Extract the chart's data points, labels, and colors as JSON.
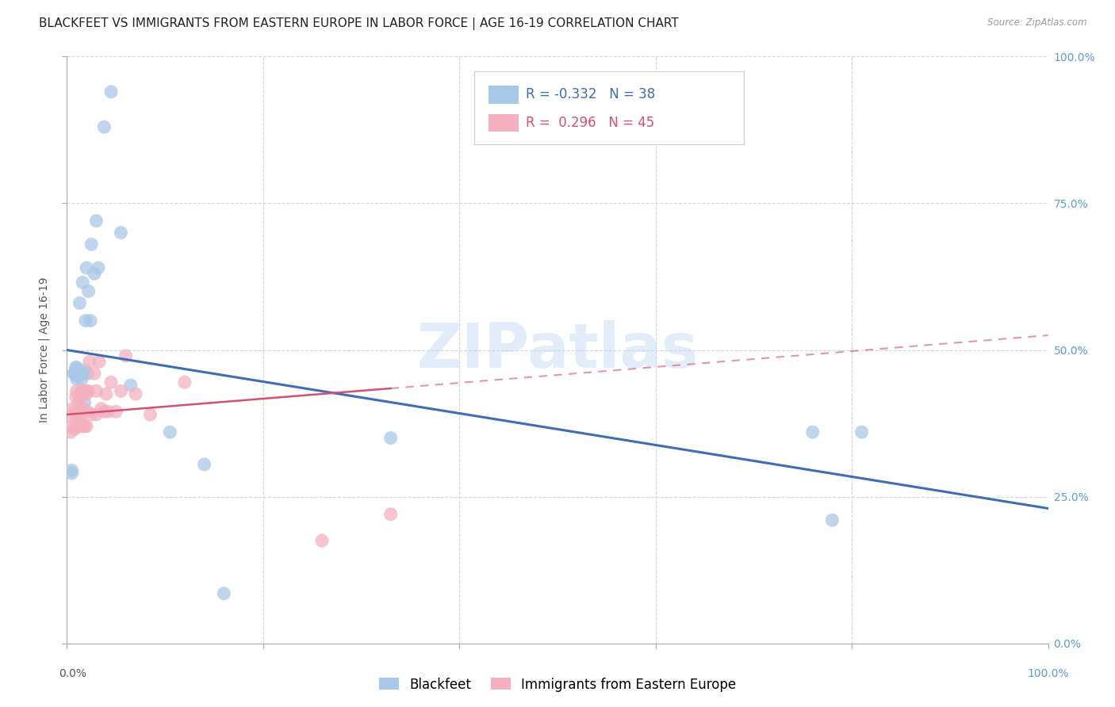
{
  "title": "BLACKFEET VS IMMIGRANTS FROM EASTERN EUROPE IN LABOR FORCE | AGE 16-19 CORRELATION CHART",
  "source": "Source: ZipAtlas.com",
  "ylabel": "In Labor Force | Age 16-19",
  "blue_label": "Blackfeet",
  "pink_label": "Immigrants from Eastern Europe",
  "blue_R": -0.332,
  "blue_N": 38,
  "pink_R": 0.296,
  "pink_N": 45,
  "blue_color": "#a8c8e8",
  "pink_color": "#f4b0c0",
  "blue_line_color": "#3c6eb4",
  "pink_line_color": "#d45070",
  "background_color": "#ffffff",
  "grid_color": "#cccccc",
  "watermark": "ZIPatlas",
  "blue_x": [
    0.005,
    0.005,
    0.007,
    0.008,
    0.009,
    0.01,
    0.01,
    0.01,
    0.01,
    0.012,
    0.013,
    0.014,
    0.015,
    0.015,
    0.016,
    0.017,
    0.018,
    0.018,
    0.019,
    0.02,
    0.021,
    0.022,
    0.024,
    0.025,
    0.028,
    0.03,
    0.032,
    0.038,
    0.045,
    0.055,
    0.065,
    0.105,
    0.14,
    0.16,
    0.33,
    0.76,
    0.78,
    0.81
  ],
  "blue_y": [
    0.29,
    0.295,
    0.46,
    0.46,
    0.47,
    0.45,
    0.455,
    0.465,
    0.47,
    0.46,
    0.58,
    0.46,
    0.45,
    0.46,
    0.615,
    0.46,
    0.41,
    0.465,
    0.55,
    0.64,
    0.46,
    0.6,
    0.55,
    0.68,
    0.63,
    0.72,
    0.64,
    0.88,
    0.94,
    0.7,
    0.44,
    0.36,
    0.305,
    0.085,
    0.35,
    0.36,
    0.21,
    0.36
  ],
  "pink_x": [
    0.004,
    0.005,
    0.006,
    0.007,
    0.008,
    0.008,
    0.009,
    0.01,
    0.01,
    0.011,
    0.012,
    0.012,
    0.013,
    0.013,
    0.014,
    0.015,
    0.015,
    0.016,
    0.017,
    0.017,
    0.018,
    0.019,
    0.02,
    0.02,
    0.021,
    0.022,
    0.023,
    0.025,
    0.028,
    0.03,
    0.03,
    0.033,
    0.035,
    0.038,
    0.04,
    0.042,
    0.045,
    0.05,
    0.055,
    0.06,
    0.07,
    0.085,
    0.12,
    0.26,
    0.33
  ],
  "pink_y": [
    0.36,
    0.37,
    0.4,
    0.385,
    0.365,
    0.395,
    0.42,
    0.385,
    0.43,
    0.395,
    0.37,
    0.41,
    0.38,
    0.42,
    0.395,
    0.375,
    0.43,
    0.37,
    0.4,
    0.43,
    0.37,
    0.43,
    0.37,
    0.425,
    0.395,
    0.43,
    0.48,
    0.39,
    0.46,
    0.39,
    0.43,
    0.48,
    0.4,
    0.395,
    0.425,
    0.395,
    0.445,
    0.395,
    0.43,
    0.49,
    0.425,
    0.39,
    0.445,
    0.175,
    0.22
  ],
  "blue_intercept": 0.5,
  "blue_slope": -0.27,
  "pink_intercept": 0.39,
  "pink_slope": 0.135,
  "title_fontsize": 11,
  "axis_label_fontsize": 10,
  "tick_fontsize": 10,
  "legend_fontsize": 12
}
